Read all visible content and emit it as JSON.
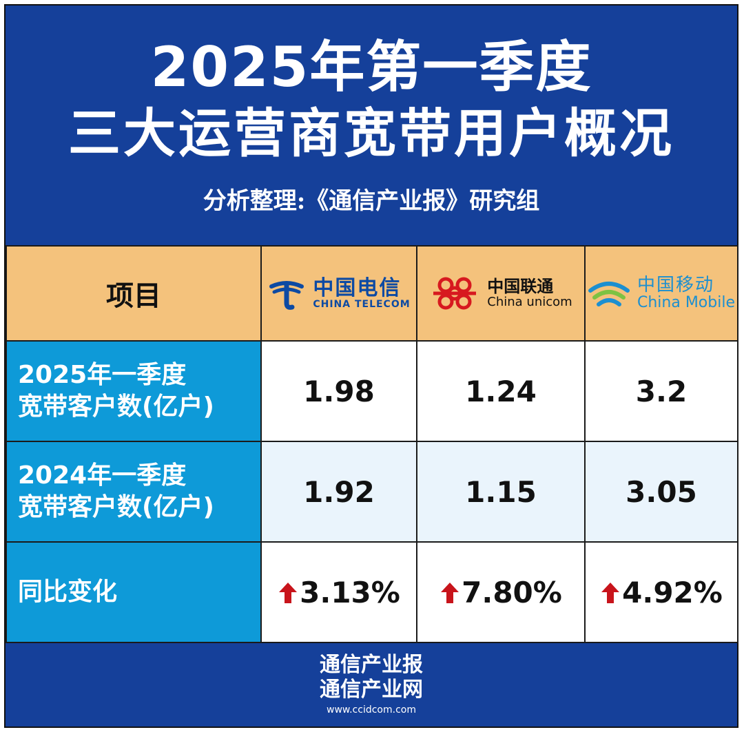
{
  "header": {
    "title_line1": "2025年第一季度",
    "title_line2": "三大运营商宽带用户概况",
    "subtitle": "分析整理:《通信产业报》研究组"
  },
  "table": {
    "corner_label": "项目",
    "operators": [
      {
        "name_cn": "中国电信",
        "name_en": "CHINA TELECOM",
        "logo_icon": "china-telecom-logo-icon",
        "color": "#0d4aa3"
      },
      {
        "name_cn": "中国联通",
        "name_en": "China unicom",
        "logo_icon": "china-unicom-logo-icon",
        "color": "#d7191f"
      },
      {
        "name_cn": "中国移动",
        "name_en": "China Mobile",
        "logo_icon": "china-mobile-logo-icon",
        "color": "#1c8fd0"
      }
    ],
    "rows": [
      {
        "label_line1": "2025年一季度",
        "label_line2": "宽带客户数(亿户)",
        "values": [
          "1.98",
          "1.24",
          "3.2"
        ]
      },
      {
        "label_line1": "2024年一季度",
        "label_line2": "宽带客户数(亿户)",
        "values": [
          "1.92",
          "1.15",
          "3.05"
        ]
      },
      {
        "label_line1": "同比变化",
        "values": [
          "3.13%",
          "7.80%",
          "4.92%"
        ],
        "trend": "up",
        "trend_icon": "arrow-up-icon",
        "trend_color": "#c8141b"
      }
    ]
  },
  "footer": {
    "line1": "通信产业报",
    "line2": "通信产业网",
    "url": "www.ccidcom.com"
  },
  "colors": {
    "primary_blue": "#15409a",
    "header_orange": "#f4c27c",
    "label_blue": "#0e9ad8",
    "alt_row": "#eaf4fc"
  }
}
